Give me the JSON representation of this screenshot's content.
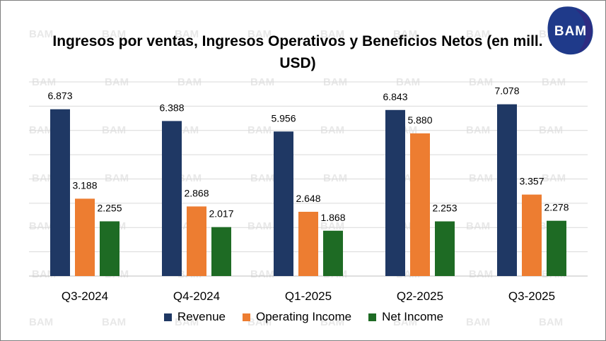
{
  "chart_data": {
    "type": "bar",
    "title": "Ingresos por ventas, Ingresos Operativos y Beneficios Netos (en mill. USD)",
    "categories": [
      "Q3-2024",
      "Q4-2024",
      "Q1-2025",
      "Q2-2025",
      "Q3-2025"
    ],
    "series": [
      {
        "name": "Revenue",
        "color": "#1f3864",
        "values": [
          6873,
          6388,
          5956,
          6843,
          7078
        ],
        "labels": [
          "6.873",
          "6.388",
          "5.956",
          "6.843",
          "7.078"
        ]
      },
      {
        "name": "Operating Income",
        "color": "#ed7d31",
        "values": [
          3188,
          2868,
          2648,
          5880,
          3357
        ],
        "labels": [
          "3.188",
          "2.868",
          "2.648",
          "5.880",
          "3.357"
        ]
      },
      {
        "name": "Net Income",
        "color": "#1e6b24",
        "values": [
          2255,
          2017,
          1868,
          2253,
          2278
        ],
        "labels": [
          "2.255",
          "2.017",
          "1.868",
          "2.253",
          "2.278"
        ]
      }
    ],
    "ylim": [
      0,
      8000
    ],
    "grid": true,
    "legend_position": "bottom",
    "xlabel": "",
    "ylabel": ""
  },
  "logo": {
    "text": "BAM",
    "color": "#1f3a8a"
  },
  "watermark": "BAM"
}
